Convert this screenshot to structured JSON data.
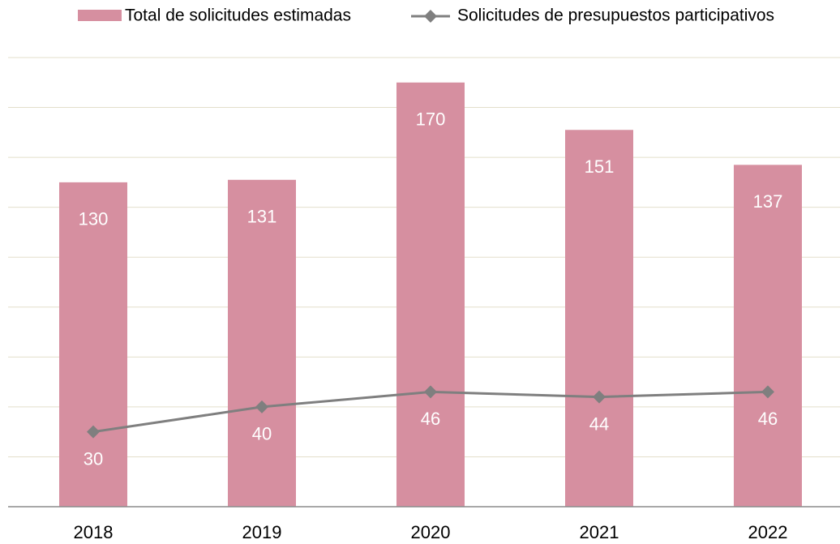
{
  "chart_data": {
    "type": "bar_line",
    "categories": [
      "2018",
      "2019",
      "2020",
      "2021",
      "2022"
    ],
    "series": [
      {
        "name": "Total de solicitudes estimadas",
        "color": "#d68fa0",
        "type": "bar",
        "values": [
          130,
          131,
          170,
          151,
          137
        ]
      },
      {
        "name": "Solicitudes de presupuestos participativos",
        "color": "#7f7f7f",
        "type": "line",
        "values": [
          30,
          40,
          46,
          44,
          46
        ]
      }
    ],
    "ylim": [
      0,
      180
    ],
    "yticks": [
      20,
      40,
      60,
      80,
      100,
      120,
      140,
      160,
      180
    ],
    "grid": true
  }
}
